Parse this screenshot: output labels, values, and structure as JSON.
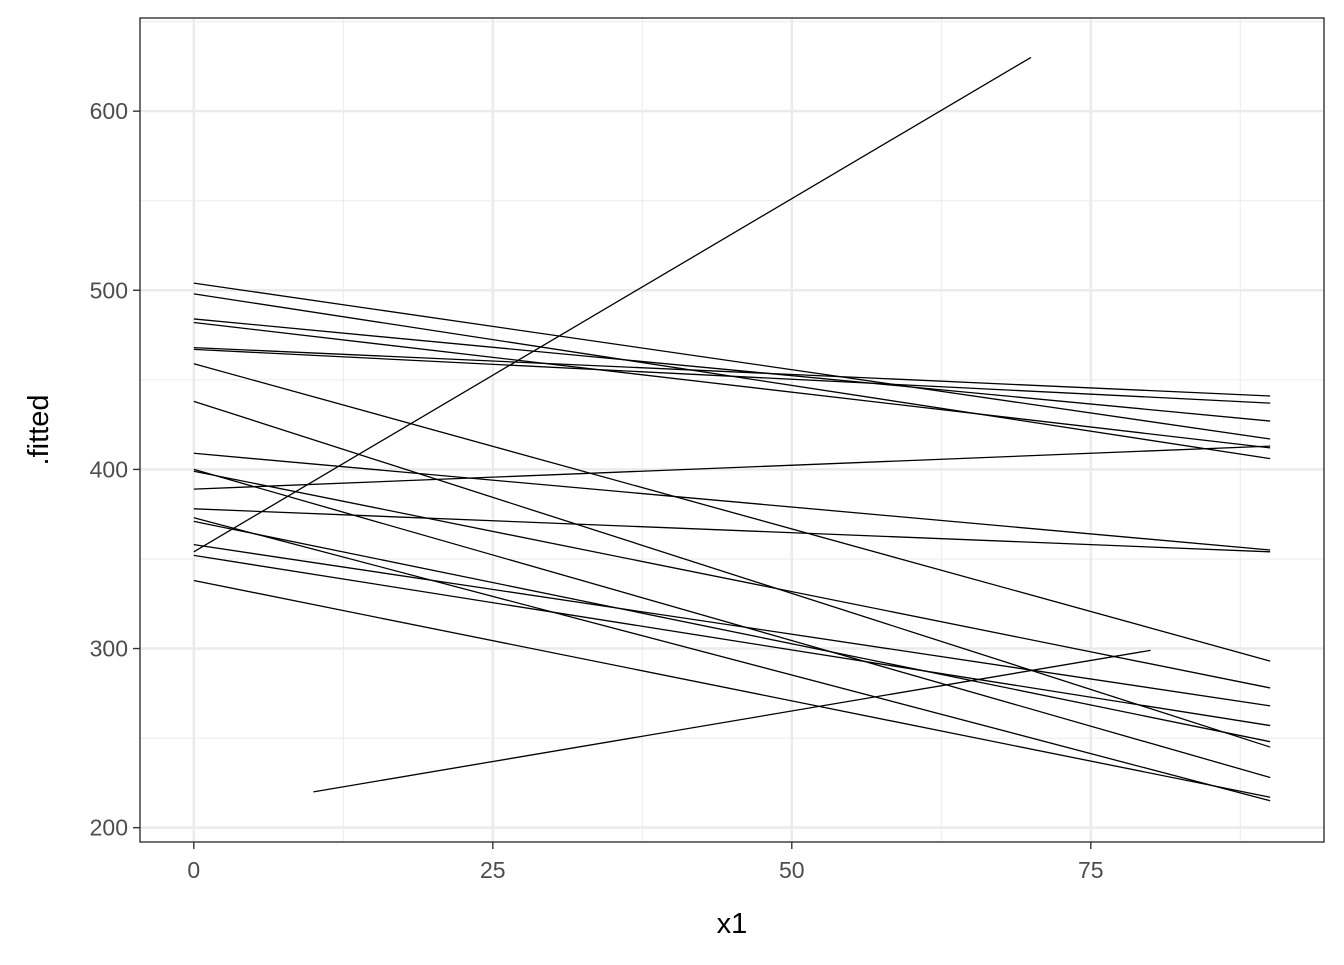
{
  "chart_data": {
    "type": "line",
    "title": "",
    "xlabel": "x1",
    "ylabel": ".fitted",
    "xlim": [
      -4.5,
      94.5
    ],
    "ylim": [
      192,
      652
    ],
    "x_ticks": [
      0,
      25,
      50,
      75
    ],
    "y_ticks": [
      200,
      300,
      400,
      500,
      600
    ],
    "grid": true,
    "theme": "bw",
    "line_color": "#000000",
    "series": [
      {
        "x": [
          0,
          90
        ],
        "y": [
          504,
          417
        ]
      },
      {
        "x": [
          0,
          90
        ],
        "y": [
          498,
          406
        ]
      },
      {
        "x": [
          0,
          90
        ],
        "y": [
          484,
          427
        ]
      },
      {
        "x": [
          0,
          90
        ],
        "y": [
          482,
          412
        ]
      },
      {
        "x": [
          0,
          90
        ],
        "y": [
          468,
          441
        ]
      },
      {
        "x": [
          0,
          90
        ],
        "y": [
          467,
          437
        ]
      },
      {
        "x": [
          0,
          90
        ],
        "y": [
          459,
          293
        ]
      },
      {
        "x": [
          0,
          90
        ],
        "y": [
          438,
          245
        ]
      },
      {
        "x": [
          0,
          90
        ],
        "y": [
          409,
          355
        ]
      },
      {
        "x": [
          0,
          90
        ],
        "y": [
          389,
          413
        ]
      },
      {
        "x": [
          0,
          90
        ],
        "y": [
          378,
          354
        ]
      },
      {
        "x": [
          0,
          90
        ],
        "y": [
          400,
          228
        ]
      },
      {
        "x": [
          0,
          90
        ],
        "y": [
          399,
          278
        ]
      },
      {
        "x": [
          0,
          90
        ],
        "y": [
          373,
          215
        ]
      },
      {
        "x": [
          0,
          90
        ],
        "y": [
          371,
          248
        ]
      },
      {
        "x": [
          0,
          90
        ],
        "y": [
          358,
          268
        ]
      },
      {
        "x": [
          0,
          90
        ],
        "y": [
          352,
          257
        ]
      },
      {
        "x": [
          0,
          90
        ],
        "y": [
          338,
          217
        ]
      },
      {
        "x": [
          0,
          70
        ],
        "y": [
          354,
          630
        ]
      },
      {
        "x": [
          10,
          80
        ],
        "y": [
          220,
          299
        ]
      }
    ]
  }
}
